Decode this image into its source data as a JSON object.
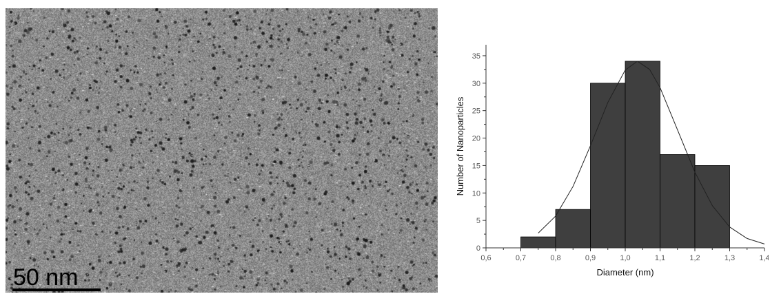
{
  "micrograph": {
    "scale_bar_label": "50 nm"
  },
  "chart_data": {
    "type": "bar",
    "subtype": "histogram-with-gaussian-fit",
    "bins": [
      {
        "start": 0.7,
        "end": 0.8,
        "count": 2
      },
      {
        "start": 0.8,
        "end": 0.9,
        "count": 7
      },
      {
        "start": 0.9,
        "end": 1.0,
        "count": 30
      },
      {
        "start": 1.0,
        "end": 1.1,
        "count": 34
      },
      {
        "start": 1.1,
        "end": 1.2,
        "count": 17
      },
      {
        "start": 1.2,
        "end": 1.3,
        "count": 15
      }
    ],
    "fit_curve": {
      "type": "gaussian",
      "x": [
        0.75,
        0.8,
        0.85,
        0.9,
        0.95,
        1.0,
        1.035,
        1.07,
        1.1,
        1.15,
        1.2,
        1.25,
        1.3,
        1.35,
        1.4
      ],
      "y": [
        2.7,
        5.8,
        11.2,
        18.6,
        26.5,
        32.4,
        34.0,
        32.5,
        29.2,
        21.5,
        13.8,
        7.7,
        3.8,
        1.7,
        0.7
      ]
    },
    "xlabel": "Diameter (nm)",
    "ylabel": "Number of Nanoparticles",
    "xlim": [
      0.6,
      1.4
    ],
    "ylim": [
      0,
      37
    ],
    "x_ticks": [
      "0,6",
      "0,7",
      "0,8",
      "0,9",
      "1,0",
      "1,1",
      "1,2",
      "1,3",
      "1,4"
    ],
    "x_tick_values": [
      0.6,
      0.7,
      0.8,
      0.9,
      1.0,
      1.1,
      1.2,
      1.3,
      1.4
    ],
    "y_ticks": [
      "0",
      "5",
      "10",
      "15",
      "20",
      "25",
      "30",
      "35"
    ],
    "y_tick_values": [
      0,
      5,
      10,
      15,
      20,
      25,
      30,
      35
    ],
    "bar_color": "#3f3f3f",
    "grid": false,
    "legend": "none"
  }
}
